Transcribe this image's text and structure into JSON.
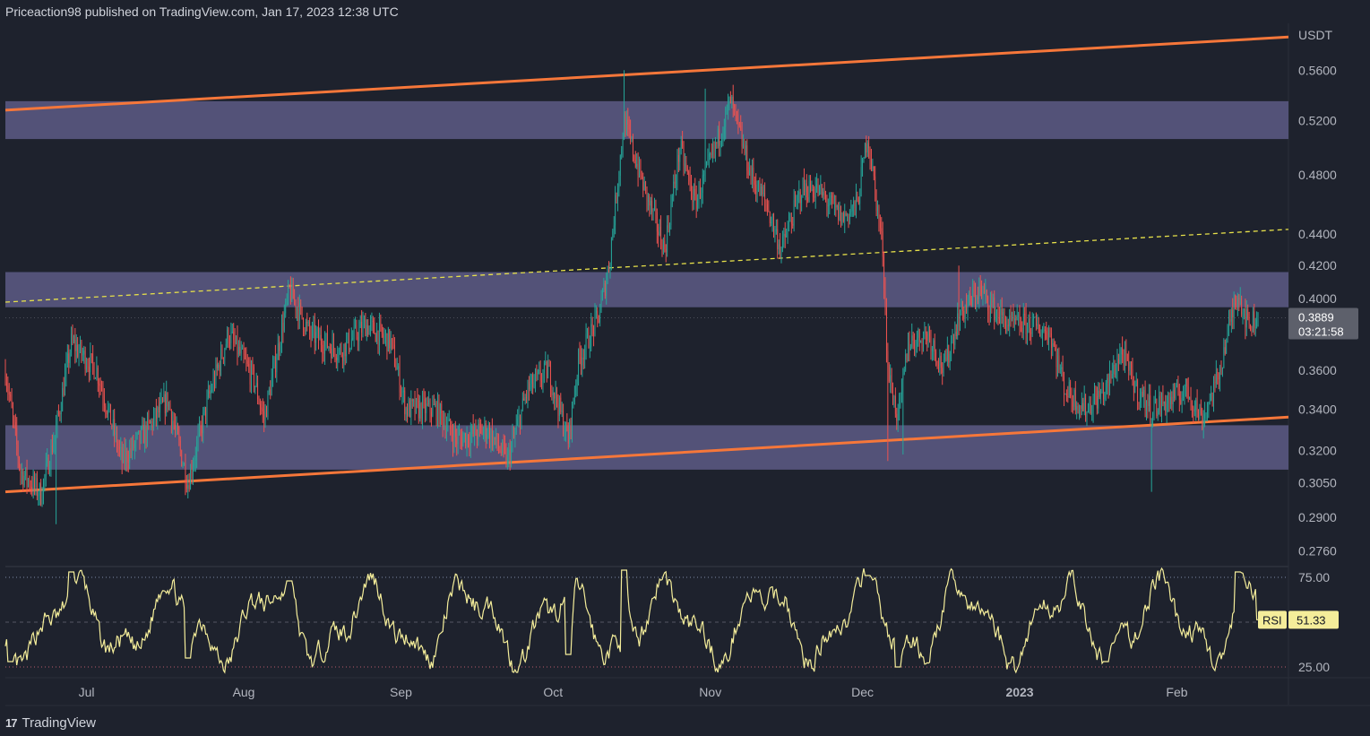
{
  "header": {
    "publisher": "Priceaction98 published on TradingView.com, Jan 17, 2023 12:38 UTC"
  },
  "footer": {
    "brand": "TradingView",
    "logo_glyph": "17"
  },
  "price_axis": {
    "currency": "USDT",
    "ticks": [
      "0.5600",
      "0.5200",
      "0.4800",
      "0.4400",
      "0.4200",
      "0.4000",
      "0.3600",
      "0.3400",
      "0.3200",
      "0.3050",
      "0.2900",
      "0.2760"
    ],
    "last_price": "0.3889",
    "countdown": "03:21:58"
  },
  "rsi_axis": {
    "ticks": [
      "75.00",
      "25.00"
    ],
    "label": "RSI",
    "value": "51.33"
  },
  "time_axis": {
    "ticks": [
      "Jul",
      "Aug",
      "Sep",
      "Oct",
      "Nov",
      "Dec",
      "2023",
      "Feb"
    ]
  },
  "colors": {
    "background": "#1e222d",
    "zone": "#5d5a86",
    "channel": "#f6773a",
    "midline": "#e6e04a",
    "rsi_line": "#f4ed9a",
    "rsi_label_bg": "#f4ed9a",
    "bull": "#26a69a",
    "bear": "#ef5350",
    "price_label_bg": "#5d606b"
  },
  "chart_data": {
    "type": "candlestick",
    "symbol_quote": "USDT",
    "x_range": [
      "2022-06-15",
      "2023-02-23"
    ],
    "y_log_scale": true,
    "y_range": [
      0.27,
      0.6
    ],
    "zones": [
      {
        "low": 0.506,
        "high": 0.535
      },
      {
        "low": 0.395,
        "high": 0.416
      },
      {
        "low": 0.311,
        "high": 0.332
      }
    ],
    "channel_upper": [
      [
        "2022-06-15",
        0.528
      ],
      [
        "2023-02-23",
        0.588
      ]
    ],
    "channel_lower": [
      [
        "2022-06-15",
        0.301
      ],
      [
        "2023-02-23",
        0.336
      ]
    ],
    "channel_mid_dashed": [
      [
        "2022-06-15",
        0.398
      ],
      [
        "2023-02-23",
        0.443
      ]
    ],
    "price_path": [
      [
        "2022-06-15",
        0.36
      ],
      [
        "2022-06-18",
        0.31
      ],
      [
        "2022-06-22",
        0.3
      ],
      [
        "2022-06-25",
        0.33
      ],
      [
        "2022-06-28",
        0.375
      ],
      [
        "2022-07-03",
        0.36
      ],
      [
        "2022-07-08",
        0.315
      ],
      [
        "2022-07-13",
        0.33
      ],
      [
        "2022-07-17",
        0.345
      ],
      [
        "2022-07-21",
        0.305
      ],
      [
        "2022-07-25",
        0.345
      ],
      [
        "2022-07-29",
        0.38
      ],
      [
        "2022-08-03",
        0.355
      ],
      [
        "2022-08-05",
        0.335
      ],
      [
        "2022-08-10",
        0.405
      ],
      [
        "2022-08-14",
        0.38
      ],
      [
        "2022-08-20",
        0.37
      ],
      [
        "2022-08-25",
        0.385
      ],
      [
        "2022-08-30",
        0.375
      ],
      [
        "2022-09-02",
        0.34
      ],
      [
        "2022-09-08",
        0.34
      ],
      [
        "2022-09-12",
        0.325
      ],
      [
        "2022-09-18",
        0.33
      ],
      [
        "2022-09-22",
        0.315
      ],
      [
        "2022-09-26",
        0.35
      ],
      [
        "2022-09-30",
        0.36
      ],
      [
        "2022-10-04",
        0.325
      ],
      [
        "2022-10-06",
        0.365
      ],
      [
        "2022-10-10",
        0.39
      ],
      [
        "2022-10-12",
        0.42
      ],
      [
        "2022-10-15",
        0.52
      ],
      [
        "2022-10-19",
        0.47
      ],
      [
        "2022-10-23",
        0.43
      ],
      [
        "2022-10-26",
        0.5
      ],
      [
        "2022-10-29",
        0.46
      ],
      [
        "2022-11-02",
        0.5
      ],
      [
        "2022-11-05",
        0.535
      ],
      [
        "2022-11-09",
        0.48
      ],
      [
        "2022-11-12",
        0.46
      ],
      [
        "2022-11-15",
        0.43
      ],
      [
        "2022-11-19",
        0.47
      ],
      [
        "2022-11-22",
        0.47
      ],
      [
        "2022-11-27",
        0.45
      ],
      [
        "2022-11-30",
        0.46
      ],
      [
        "2022-12-02",
        0.51
      ],
      [
        "2022-12-05",
        0.43
      ],
      [
        "2022-12-06",
        0.36
      ],
      [
        "2022-12-08",
        0.335
      ],
      [
        "2022-12-10",
        0.375
      ],
      [
        "2022-12-14",
        0.38
      ],
      [
        "2022-12-17",
        0.36
      ],
      [
        "2022-12-20",
        0.39
      ],
      [
        "2022-12-24",
        0.405
      ],
      [
        "2022-12-28",
        0.39
      ],
      [
        "2022-12-30",
        0.385
      ],
      [
        "2023-01-03",
        0.385
      ],
      [
        "2023-01-07",
        0.38
      ],
      [
        "2023-01-10",
        0.35
      ],
      [
        "2023-01-14",
        0.34
      ],
      [
        "2023-01-18",
        0.35
      ],
      [
        "2023-01-21",
        0.37
      ],
      [
        "2023-01-24",
        0.35
      ],
      [
        "2023-01-27",
        0.34
      ],
      [
        "2023-01-31",
        0.345
      ],
      [
        "2023-02-03",
        0.35
      ],
      [
        "2023-02-06",
        0.335
      ],
      [
        "2023-02-09",
        0.355
      ],
      [
        "2023-02-11",
        0.38
      ],
      [
        "2023-02-13",
        0.405
      ],
      [
        "2023-02-15",
        0.385
      ],
      [
        "2023-02-17",
        0.389
      ]
    ],
    "notable_wicks": [
      {
        "date": "2022-06-25",
        "low": 0.287
      },
      {
        "date": "2022-10-15",
        "high": 0.56
      },
      {
        "date": "2022-10-31",
        "high": 0.545
      },
      {
        "date": "2022-12-06",
        "low": 0.315
      },
      {
        "date": "2022-12-09",
        "low": 0.318
      },
      {
        "date": "2022-12-20",
        "high": 0.42
      },
      {
        "date": "2023-01-27",
        "low": 0.301
      }
    ],
    "rsi": {
      "period_levels": [
        75,
        25
      ],
      "y_range": [
        20,
        80
      ],
      "last": 51.33,
      "peaks": [
        [
          "2022-06-28",
          78
        ],
        [
          "2022-08-10",
          73
        ],
        [
          "2022-10-15",
          79
        ],
        [
          "2022-12-02",
          76
        ],
        [
          "2023-02-13",
          78
        ]
      ],
      "troughs": [
        [
          "2022-06-16",
          28
        ],
        [
          "2022-07-21",
          30
        ],
        [
          "2022-10-04",
          32
        ],
        [
          "2022-12-08",
          25
        ],
        [
          "2023-01-18",
          28
        ]
      ]
    }
  }
}
